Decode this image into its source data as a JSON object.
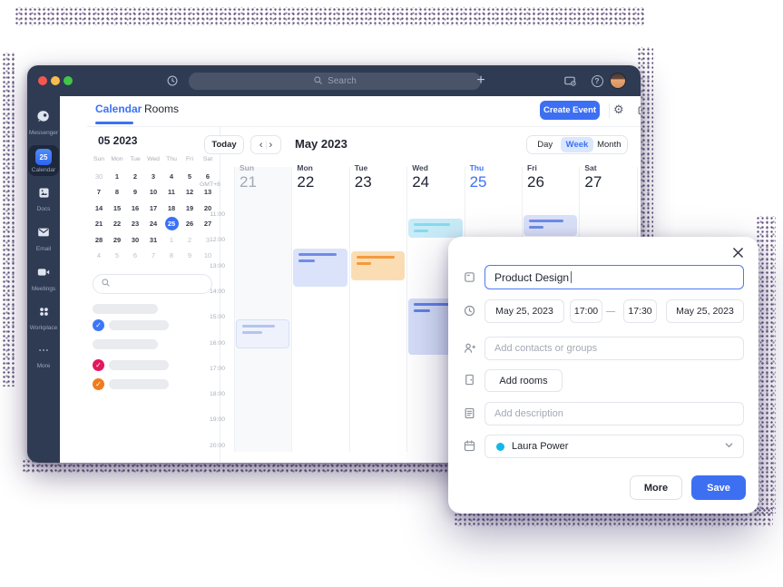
{
  "titlebar": {
    "search_placeholder": "Search"
  },
  "sidebar": {
    "items": [
      {
        "label": "Messenger",
        "icon": "messenger-icon"
      },
      {
        "label": "Calendar",
        "icon": "calendar-app-icon",
        "badge": "25",
        "active": true
      },
      {
        "label": "Docs",
        "icon": "docs-icon"
      },
      {
        "label": "Email",
        "icon": "email-icon"
      },
      {
        "label": "Meetings",
        "icon": "meetings-icon"
      },
      {
        "label": "Workplace",
        "icon": "workplace-icon"
      },
      {
        "label": "More",
        "icon": "more-icon"
      }
    ]
  },
  "header": {
    "tabs": [
      {
        "label": "Calendar",
        "active": true
      },
      {
        "label": "Rooms",
        "active": false
      }
    ],
    "create_event_label": "Create Event"
  },
  "mini_calendar": {
    "title": "05 2023",
    "day_headers": [
      "Sun",
      "Mon",
      "Tue",
      "Wed",
      "Thu",
      "Fri",
      "Sat"
    ],
    "weeks": [
      [
        {
          "t": "30",
          "m": 1
        },
        {
          "t": "1"
        },
        {
          "t": "2"
        },
        {
          "t": "3"
        },
        {
          "t": "4"
        },
        {
          "t": "5"
        },
        {
          "t": "6"
        }
      ],
      [
        {
          "t": "7"
        },
        {
          "t": "8"
        },
        {
          "t": "9"
        },
        {
          "t": "10"
        },
        {
          "t": "11"
        },
        {
          "t": "12"
        },
        {
          "t": "13"
        }
      ],
      [
        {
          "t": "14"
        },
        {
          "t": "15"
        },
        {
          "t": "16"
        },
        {
          "t": "17"
        },
        {
          "t": "18"
        },
        {
          "t": "19"
        },
        {
          "t": "20"
        }
      ],
      [
        {
          "t": "21"
        },
        {
          "t": "22"
        },
        {
          "t": "23"
        },
        {
          "t": "24"
        },
        {
          "t": "25",
          "sel": 1
        },
        {
          "t": "26"
        },
        {
          "t": "27"
        }
      ],
      [
        {
          "t": "28"
        },
        {
          "t": "29"
        },
        {
          "t": "30"
        },
        {
          "t": "31"
        },
        {
          "t": "1",
          "m": 1
        },
        {
          "t": "2",
          "m": 1
        },
        {
          "t": "3",
          "m": 1
        }
      ],
      [
        {
          "t": "4",
          "m": 1
        },
        {
          "t": "5",
          "m": 1
        },
        {
          "t": "6",
          "m": 1
        },
        {
          "t": "7",
          "m": 1
        },
        {
          "t": "8",
          "m": 1
        },
        {
          "t": "9",
          "m": 1
        },
        {
          "t": "10",
          "m": 1
        }
      ]
    ]
  },
  "calendar_list": {
    "rows": [
      {
        "kind": "section"
      },
      {
        "kind": "calendar",
        "check_color": "#3B77F7"
      },
      {
        "kind": "section"
      },
      {
        "kind": "calendar",
        "check_color": "#E3175E"
      },
      {
        "kind": "calendar",
        "check_color": "#F07B1F"
      }
    ]
  },
  "week_view": {
    "today_label": "Today",
    "month_title": "May 2023",
    "views": [
      {
        "label": "Day"
      },
      {
        "label": "Week",
        "active": true
      },
      {
        "label": "Month"
      }
    ],
    "timezone": "GMT+8",
    "days": [
      {
        "name": "Sun",
        "date": "21",
        "state": "muted"
      },
      {
        "name": "Mon",
        "date": "22",
        "state": "normal"
      },
      {
        "name": "Tue",
        "date": "23",
        "state": "normal"
      },
      {
        "name": "Wed",
        "date": "24",
        "state": "normal"
      },
      {
        "name": "Thu",
        "date": "25",
        "state": "accent"
      },
      {
        "name": "Fri",
        "date": "26",
        "state": "normal"
      },
      {
        "name": "Sat",
        "date": "27",
        "state": "normal"
      }
    ],
    "hours": [
      "11:00",
      "12:00",
      "13:00",
      "14:00",
      "15:00",
      "16:00",
      "17:00",
      "18:00",
      "19:00",
      "20:00"
    ],
    "events": [
      {
        "day": 0,
        "start": 15.05,
        "end": 16.2,
        "palette": "light",
        "lines": [
          36,
          22
        ]
      },
      {
        "day": 1,
        "start": 12.3,
        "end": 13.8,
        "palette": "blue",
        "lines": [
          42,
          18
        ]
      },
      {
        "day": 2,
        "start": 12.4,
        "end": 13.55,
        "palette": "orange",
        "lines": [
          42,
          16
        ]
      },
      {
        "day": 3,
        "start": 11.15,
        "end": 11.9,
        "palette": "cyan",
        "lines": [
          40,
          16
        ]
      },
      {
        "day": 3,
        "start": 14.25,
        "end": 16.45,
        "palette": "strong",
        "lines": [
          40,
          18
        ]
      },
      {
        "day": 5,
        "start": 11.0,
        "end": 11.8,
        "palette": "blue",
        "lines": [
          38,
          16
        ]
      }
    ]
  },
  "event_palettes": {
    "light": {
      "bg": "#EEF2FC",
      "border": "#D8E0F6",
      "line": "#B5C3EF"
    },
    "blue": {
      "bg": "#DBE3FA",
      "border": "",
      "line": "#6E8CE7"
    },
    "strong": {
      "bg": "#D4DDF8",
      "border": "",
      "line": "#5F80E6"
    },
    "orange": {
      "bg": "#FBDDB4",
      "border": "",
      "line": "#F29B3F"
    },
    "cyan": {
      "bg": "#C9ECF8",
      "border": "",
      "line": "#89DAED"
    }
  },
  "modal": {
    "title_value": "Product Design",
    "start_date": "May 25, 2023",
    "start_time": "17:00",
    "time_separator": "—",
    "end_time": "17:30",
    "end_date": "May 25, 2023",
    "contacts_placeholder": "Add contacts or groups",
    "add_rooms_label": "Add rooms",
    "description_placeholder": "Add description",
    "owner_name": "Laura Power",
    "owner_dot_color": "#12B8EA",
    "more_label": "More",
    "save_label": "Save"
  },
  "colors": {
    "accent": "#3B71F7",
    "save_button": "#3D6FF2",
    "titlebar": "#2F3B52"
  }
}
